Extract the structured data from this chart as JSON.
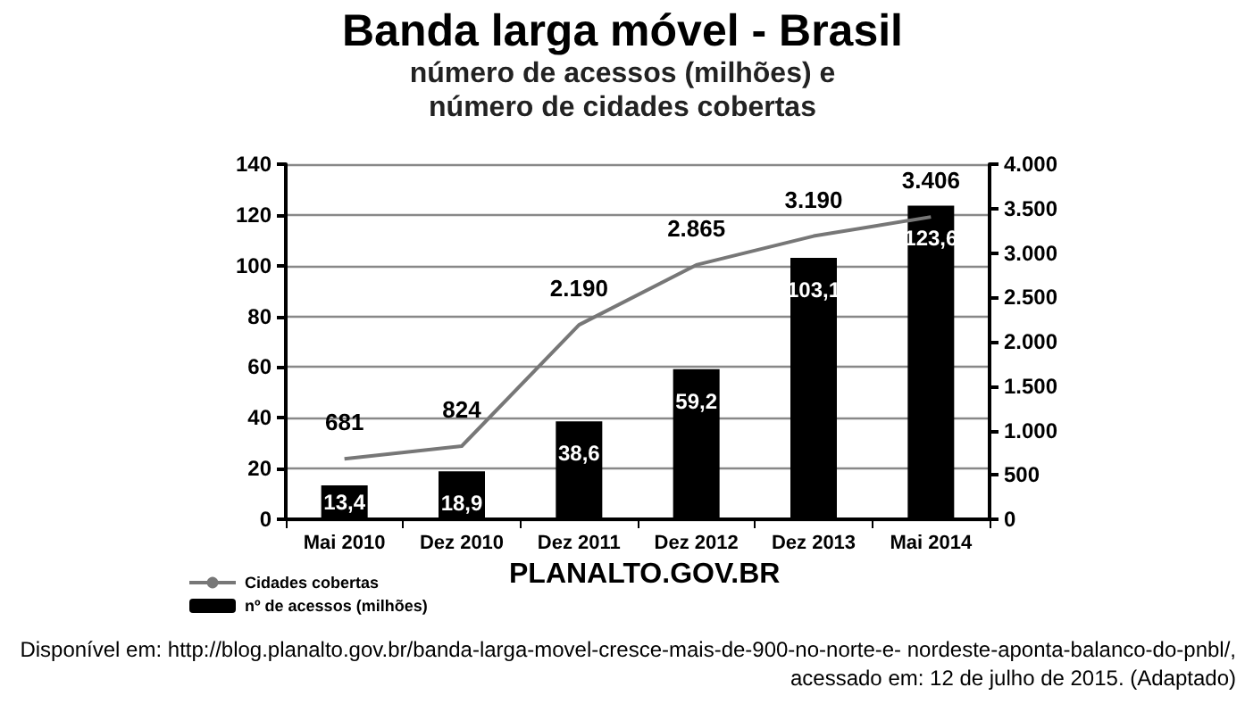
{
  "chart_data": {
    "type": "bar",
    "title": "Banda larga móvel - Brasil",
    "subtitle": "número de acessos (milhões) e\nnúmero de cidades cobertas",
    "categories": [
      "Mai 2010",
      "Dez 2010",
      "Dez 2011",
      "Dez 2012",
      "Dez 2013",
      "Mai 2014"
    ],
    "series": [
      {
        "name": "Cidades cobertas",
        "type": "line",
        "axis": "y2",
        "color": "#777777",
        "values": [
          681,
          824,
          2190,
          2865,
          3190,
          3406
        ],
        "value_labels": [
          "681",
          "824",
          "2.190",
          "2.865",
          "3.190",
          "3.406"
        ]
      },
      {
        "name": "nº de acessos (milhões)",
        "color": "#000000",
        "values": [
          13.4,
          18.9,
          38.6,
          59.2,
          103.1,
          123.6
        ],
        "value_labels": [
          "13,4",
          "18,9",
          "38,6",
          "59,2",
          "103,1",
          "123,6"
        ]
      }
    ],
    "ylim": [
      0,
      140
    ],
    "yticks": [
      0,
      20,
      40,
      60,
      80,
      100,
      120,
      140
    ],
    "y2lim": [
      0,
      4000
    ],
    "y2ticks": [
      0,
      500,
      {
        "value": 1000,
        "label": "1.000"
      },
      {
        "value": 1500,
        "label": "1.500"
      },
      {
        "value": 2000,
        "label": "2.000"
      },
      {
        "value": 2500,
        "label": "2.500"
      },
      {
        "value": 3000,
        "label": "3.000"
      },
      {
        "value": 3500,
        "label": "3.500"
      },
      {
        "value": 4000,
        "label": "4.000"
      }
    ],
    "grid": "y",
    "legend": "bottom left",
    "marker": "none",
    "annotations": [
      "PLANALTO.GOV.BR",
      "Disponível em: http://blog.planalto.gov.br/banda-larga-movel-cresce-mais-de-900-no-norte-e- nordeste-aponta-balanco-do-pnbl/,",
      "acessado em: 12 de julho de 2015. (Adaptado)"
    ]
  }
}
